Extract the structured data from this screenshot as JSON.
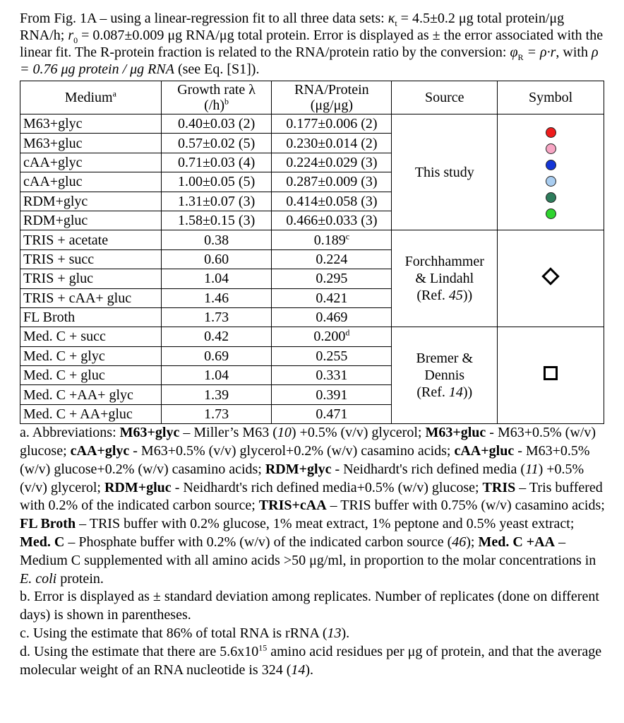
{
  "caption": {
    "line1_prefix": "From Fig. 1A – using a linear-regression fit to all three data sets:",
    "kappa_sym": "κ",
    "kappa_sub": "t",
    "kappa_value": "= 4.5±0.2 μg total protein/μg RNA/h;",
    "r0_sym": "r",
    "r0_sub": "0",
    "r0_value": "= 0.087±0.009 μg RNA/μg total protein. Error is displayed as ± the error associated with the linear fit. The R-protein fraction is related to the RNA/protein ratio by the conversion:",
    "phi_sym": "φ",
    "phi_sub": "R",
    "conversion_eq": "= ρ·r",
    "with_text": ", with",
    "rho_eq": "ρ = 0.76 μg protein / μg RNA",
    "ref_text": "(see Eq. [S1])."
  },
  "table": {
    "headers": {
      "medium": "Medium",
      "medium_note": "a",
      "growth_line1": "Growth rate λ",
      "growth_line2": "(/h)",
      "growth_note": "b",
      "rna_line1": "RNA/Protein",
      "rna_line2": "(μg/μg)",
      "source": "Source",
      "symbol": "Symbol"
    },
    "groups": [
      {
        "source_lines": [
          "This study"
        ],
        "symbol": "dots",
        "rows": [
          {
            "medium": "M63+glyc",
            "growth": "0.40±0.03 (2)",
            "rna": "0.177±0.006 (2)",
            "rna_note": ""
          },
          {
            "medium": "M63+gluc",
            "growth": "0.57±0.02 (5)",
            "rna": "0.230±0.014 (2)",
            "rna_note": ""
          },
          {
            "medium": "cAA+glyc",
            "growth": "0.71±0.03 (4)",
            "rna": "0.224±0.029 (3)",
            "rna_note": ""
          },
          {
            "medium": "cAA+gluc",
            "growth": "1.00±0.05 (5)",
            "rna": "0.287±0.009 (3)",
            "rna_note": ""
          },
          {
            "medium": "RDM+glyc",
            "growth": "1.31±0.07 (3)",
            "rna": "0.414±0.058 (3)",
            "rna_note": ""
          },
          {
            "medium": "RDM+gluc",
            "growth": "1.58±0.15 (3)",
            "rna": "0.466±0.033 (3)",
            "rna_note": ""
          }
        ]
      },
      {
        "source_lines": [
          "Forchhammer",
          "& Lindahl",
          "(Ref. ",
          "45",
          "))"
        ],
        "symbol": "diamond",
        "rows": [
          {
            "medium": "TRIS + acetate",
            "growth": "0.38",
            "rna": "0.189",
            "rna_note": "c"
          },
          {
            "medium": "TRIS + succ",
            "growth": "0.60",
            "rna": "0.224",
            "rna_note": ""
          },
          {
            "medium": "TRIS + gluc",
            "growth": "1.04",
            "rna": "0.295",
            "rna_note": ""
          },
          {
            "medium": "TRIS + cAA+ gluc",
            "growth": "1.46",
            "rna": "0.421",
            "rna_note": ""
          },
          {
            "medium": "FL Broth",
            "growth": "1.73",
            "rna": "0.469",
            "rna_note": ""
          }
        ]
      },
      {
        "source_lines": [
          "Bremer &",
          "Dennis",
          "(Ref. ",
          "14",
          "))"
        ],
        "symbol": "square",
        "rows": [
          {
            "medium": "Med. C + succ",
            "growth": "0.42",
            "rna": "0.200",
            "rna_note": "d"
          },
          {
            "medium": "Med. C + glyc",
            "growth": "0.69",
            "rna": "0.255",
            "rna_note": ""
          },
          {
            "medium": "Med. C + gluc",
            "growth": "1.04",
            "rna": "0.331",
            "rna_note": ""
          },
          {
            "medium": "Med. C +AA+ glyc",
            "growth": "1.39",
            "rna": "0.391",
            "rna_note": ""
          },
          {
            "medium": "Med. C + AA+gluc",
            "growth": "1.73",
            "rna": "0.471",
            "rna_note": ""
          }
        ]
      }
    ],
    "dot_colors": [
      "#ee1c1c",
      "#f7a6c4",
      "#1435d6",
      "#a9cdf0",
      "#2e7c5c",
      "#2fd42f"
    ]
  },
  "footnotes": {
    "a": [
      {
        "t": "a. Abbreviations: ",
        "s": "n"
      },
      {
        "t": "M63+glyc",
        "s": "b"
      },
      {
        "t": " – Miller’s M63 (",
        "s": "n"
      },
      {
        "t": "10",
        "s": "i"
      },
      {
        "t": ") +0.5% (v/v) glycerol; ",
        "s": "n"
      },
      {
        "t": "M63+gluc",
        "s": "b"
      },
      {
        "t": " - M63+0.5% (w/v) glucose; ",
        "s": "n"
      },
      {
        "t": "cAA+glyc",
        "s": "b"
      },
      {
        "t": " - M63+0.5% (v/v) glycerol+0.2% (w/v) casamino acids; ",
        "s": "n"
      },
      {
        "t": "cAA+gluc",
        "s": "b"
      },
      {
        "t": " - M63+0.5% (w/v) glucose+0.2% (w/v) casamino acids; ",
        "s": "n"
      },
      {
        "t": "RDM+glyc",
        "s": "b"
      },
      {
        "t": " - Neidhardt's rich defined media (",
        "s": "n"
      },
      {
        "t": "11",
        "s": "i"
      },
      {
        "t": ") +0.5% (v/v) glycerol; ",
        "s": "n"
      },
      {
        "t": "RDM+gluc",
        "s": "b"
      },
      {
        "t": " - Neidhardt's rich defined media+0.5% (w/v) glucose; ",
        "s": "n"
      },
      {
        "t": "TRIS",
        "s": "b"
      },
      {
        "t": " – Tris buffered with 0.2% of the indicated carbon source; ",
        "s": "n"
      },
      {
        "t": "TRIS+cAA",
        "s": "b"
      },
      {
        "t": " – TRIS buffer with 0.75% (w/v) casamino acids; ",
        "s": "n"
      },
      {
        "t": "FL Broth",
        "s": "b"
      },
      {
        "t": " – TRIS buffer with 0.2% glucose, 1% meat extract, 1% peptone and 0.5% yeast extract; ",
        "s": "n"
      },
      {
        "t": "Med. C",
        "s": "b"
      },
      {
        "t": " – Phosphate buffer with 0.2% (w/v) of the indicated carbon source (",
        "s": "n"
      },
      {
        "t": "46",
        "s": "i"
      },
      {
        "t": "); ",
        "s": "n"
      },
      {
        "t": "Med. C +AA",
        "s": "b"
      },
      {
        "t": " – Medium C supplemented with all amino acids >50 μg/ml, in proportion to the molar concentrations in ",
        "s": "n"
      },
      {
        "t": "E. coli",
        "s": "i"
      },
      {
        "t": " protein.",
        "s": "n"
      }
    ],
    "b": [
      {
        "t": "b. Error is displayed as ± standard deviation among replicates. Number of replicates (done on different days) is shown in parentheses.",
        "s": "n"
      }
    ],
    "c": [
      {
        "t": "c. Using the estimate that 86% of total RNA is rRNA (",
        "s": "n"
      },
      {
        "t": "13",
        "s": "i"
      },
      {
        "t": ").",
        "s": "n"
      }
    ],
    "d": [
      {
        "t": "d. Using the estimate that there are 5.6x10",
        "s": "n"
      },
      {
        "t": "15",
        "s": "sup"
      },
      {
        "t": " amino acid residues per μg of protein, and that the average molecular weight of an RNA nucleotide is 324 (",
        "s": "n"
      },
      {
        "t": "14",
        "s": "i"
      },
      {
        "t": ").",
        "s": "n"
      }
    ]
  }
}
